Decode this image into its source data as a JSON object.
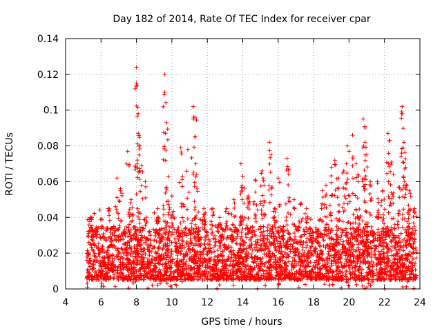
{
  "chart_data": {
    "type": "scatter",
    "title": "Day 182 of 2014, Rate Of TEC Index for receiver cpar",
    "xlabel": "GPS time / hours",
    "ylabel": "ROTI / TECUs",
    "xlim": [
      4,
      24
    ],
    "ylim": [
      0,
      0.14
    ],
    "xticks": [
      "4",
      "6",
      "8",
      "10",
      "12",
      "14",
      "16",
      "18",
      "20",
      "22",
      "24"
    ],
    "yticks": [
      "0",
      "0.02",
      "0.04",
      "0.06",
      "0.08",
      "0.1",
      "0.12",
      "0.14"
    ],
    "xtick_values": [
      4,
      6,
      8,
      10,
      12,
      14,
      16,
      18,
      20,
      22,
      24
    ],
    "ytick_values": [
      0,
      0.02,
      0.04,
      0.06,
      0.08,
      0.1,
      0.12,
      0.14
    ],
    "grid": true,
    "marker": "+",
    "series": [
      {
        "name": "ROTI",
        "color": "#ff0000",
        "x_start": 5.2,
        "x_end": 23.8,
        "typical_range": [
          0.005,
          0.035
        ],
        "spikes": [
          {
            "x": 5.4,
            "y": 0.04
          },
          {
            "x": 6.4,
            "y": 0.045
          },
          {
            "x": 6.9,
            "y": 0.062
          },
          {
            "x": 7.1,
            "y": 0.056
          },
          {
            "x": 7.5,
            "y": 0.077
          },
          {
            "x": 7.7,
            "y": 0.05
          },
          {
            "x": 8.0,
            "y": 0.124
          },
          {
            "x": 8.0,
            "y": 0.115
          },
          {
            "x": 8.1,
            "y": 0.098
          },
          {
            "x": 8.1,
            "y": 0.087
          },
          {
            "x": 8.2,
            "y": 0.08
          },
          {
            "x": 8.3,
            "y": 0.069
          },
          {
            "x": 8.5,
            "y": 0.06
          },
          {
            "x": 9.2,
            "y": 0.045
          },
          {
            "x": 9.6,
            "y": 0.12
          },
          {
            "x": 9.6,
            "y": 0.11
          },
          {
            "x": 9.7,
            "y": 0.093
          },
          {
            "x": 9.8,
            "y": 0.063
          },
          {
            "x": 10.0,
            "y": 0.052
          },
          {
            "x": 10.5,
            "y": 0.079
          },
          {
            "x": 10.6,
            "y": 0.063
          },
          {
            "x": 10.9,
            "y": 0.078
          },
          {
            "x": 11.2,
            "y": 0.102
          },
          {
            "x": 11.3,
            "y": 0.096
          },
          {
            "x": 11.3,
            "y": 0.085
          },
          {
            "x": 11.4,
            "y": 0.064
          },
          {
            "x": 11.8,
            "y": 0.045
          },
          {
            "x": 12.3,
            "y": 0.045
          },
          {
            "x": 12.7,
            "y": 0.04
          },
          {
            "x": 13.1,
            "y": 0.045
          },
          {
            "x": 13.5,
            "y": 0.05
          },
          {
            "x": 13.9,
            "y": 0.07
          },
          {
            "x": 14.0,
            "y": 0.063
          },
          {
            "x": 14.3,
            "y": 0.052
          },
          {
            "x": 14.7,
            "y": 0.061
          },
          {
            "x": 15.1,
            "y": 0.066
          },
          {
            "x": 15.2,
            "y": 0.058
          },
          {
            "x": 15.5,
            "y": 0.082
          },
          {
            "x": 15.6,
            "y": 0.075
          },
          {
            "x": 15.8,
            "y": 0.045
          },
          {
            "x": 16.0,
            "y": 0.062
          },
          {
            "x": 16.5,
            "y": 0.073
          },
          {
            "x": 16.6,
            "y": 0.067
          },
          {
            "x": 16.9,
            "y": 0.05
          },
          {
            "x": 17.3,
            "y": 0.048
          },
          {
            "x": 17.6,
            "y": 0.045
          },
          {
            "x": 18.5,
            "y": 0.055
          },
          {
            "x": 18.7,
            "y": 0.058
          },
          {
            "x": 19.0,
            "y": 0.068
          },
          {
            "x": 19.2,
            "y": 0.072
          },
          {
            "x": 19.4,
            "y": 0.062
          },
          {
            "x": 19.7,
            "y": 0.066
          },
          {
            "x": 19.9,
            "y": 0.08
          },
          {
            "x": 20.0,
            "y": 0.077
          },
          {
            "x": 20.2,
            "y": 0.086
          },
          {
            "x": 20.4,
            "y": 0.07
          },
          {
            "x": 20.5,
            "y": 0.064
          },
          {
            "x": 20.8,
            "y": 0.095
          },
          {
            "x": 20.9,
            "y": 0.09
          },
          {
            "x": 20.9,
            "y": 0.082
          },
          {
            "x": 21.0,
            "y": 0.075
          },
          {
            "x": 21.2,
            "y": 0.06
          },
          {
            "x": 21.6,
            "y": 0.06
          },
          {
            "x": 21.9,
            "y": 0.055
          },
          {
            "x": 22.2,
            "y": 0.087
          },
          {
            "x": 22.3,
            "y": 0.083
          },
          {
            "x": 22.4,
            "y": 0.071
          },
          {
            "x": 22.5,
            "y": 0.064
          },
          {
            "x": 22.8,
            "y": 0.057
          },
          {
            "x": 23.0,
            "y": 0.102
          },
          {
            "x": 23.0,
            "y": 0.098
          },
          {
            "x": 23.1,
            "y": 0.082
          },
          {
            "x": 23.2,
            "y": 0.068
          },
          {
            "x": 23.4,
            "y": 0.055
          },
          {
            "x": 23.7,
            "y": 0.045
          }
        ]
      }
    ]
  }
}
